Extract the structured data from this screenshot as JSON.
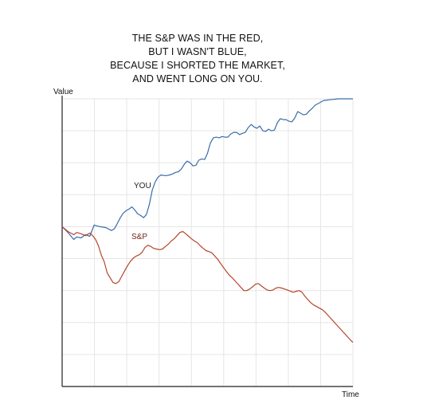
{
  "chart_data": {
    "type": "line",
    "title_lines": [
      "THE S&P WAS IN THE RED,",
      "BUT I WASN'T BLUE,",
      "BECAUSE I SHORTED THE MARKET,",
      "AND WENT LONG ON YOU."
    ],
    "xlabel": "Time",
    "ylabel": "Value",
    "xlim": [
      0,
      100
    ],
    "ylim": [
      0,
      9
    ],
    "grid": true,
    "series": [
      {
        "name": "YOU",
        "color": "#3a6cab",
        "x": [
          0,
          2,
          4,
          5,
          6.5,
          8,
          9.5,
          11,
          12,
          13,
          15,
          17,
          18,
          19,
          20,
          21,
          22,
          23,
          24,
          25,
          26,
          27,
          28,
          29,
          30,
          31,
          32,
          33,
          34,
          35,
          36,
          37,
          38,
          39,
          40,
          41,
          42,
          43,
          44,
          45,
          46,
          47,
          48,
          49,
          50,
          51,
          52,
          53,
          54,
          55,
          56,
          57,
          58,
          59,
          60,
          61,
          62,
          63,
          64,
          65,
          66,
          67,
          68,
          69,
          70,
          71,
          72,
          73,
          74,
          75,
          76,
          77,
          78,
          79,
          80,
          81,
          82,
          83,
          84,
          85,
          86,
          87,
          88,
          89,
          90,
          91,
          92,
          93,
          94,
          95,
          96,
          97,
          98,
          99,
          100
        ],
        "y": [
          5.0,
          4.82,
          4.6,
          4.68,
          4.65,
          4.75,
          4.7,
          5.05,
          5.02,
          5.0,
          4.97,
          4.88,
          4.94,
          5.1,
          5.28,
          5.42,
          5.5,
          5.55,
          5.62,
          5.52,
          5.4,
          5.35,
          5.28,
          5.38,
          5.7,
          6.15,
          6.4,
          6.55,
          6.62,
          6.6,
          6.6,
          6.62,
          6.65,
          6.7,
          6.72,
          6.8,
          6.95,
          7.05,
          7.0,
          6.9,
          6.92,
          7.08,
          7.12,
          7.1,
          7.3,
          7.62,
          7.78,
          7.8,
          7.78,
          7.82,
          7.8,
          7.8,
          7.9,
          7.95,
          7.95,
          7.88,
          7.92,
          7.95,
          8.1,
          8.2,
          8.12,
          8.08,
          8.15,
          8.0,
          7.98,
          8.05,
          8.0,
          8.02,
          8.25,
          8.38,
          8.35,
          8.35,
          8.3,
          8.28,
          8.4,
          8.6,
          8.55,
          8.5,
          8.52,
          8.62,
          8.7,
          8.8,
          8.85,
          8.9,
          8.95,
          8.96,
          8.97,
          8.98,
          8.99,
          9.0,
          9.0,
          9.0,
          9.0,
          9.0,
          9.0
        ]
      },
      {
        "name": "S&P",
        "color": "#b5452a",
        "x": [
          0,
          2,
          4,
          5,
          6.5,
          8,
          9.5,
          10.5,
          11.5,
          12.5,
          13.5,
          14.5,
          15.5,
          16.5,
          17.5,
          18.5,
          19.5,
          20.5,
          21.5,
          22.5,
          23.5,
          24.5,
          25.5,
          26.5,
          27.5,
          28.5,
          29.5,
          30.5,
          31.5,
          32.5,
          33.5,
          34.5,
          35.5,
          36.5,
          37.5,
          38.5,
          39.5,
          40.5,
          41.5,
          42.5,
          43.5,
          44.5,
          45.5,
          46.5,
          47.5,
          48.5,
          49.5,
          50.5,
          51.5,
          52.5,
          53.5,
          54.5,
          55.5,
          56.5,
          57.5,
          58.5,
          59.5,
          60.5,
          61.5,
          62.5,
          63.5,
          64.5,
          65.5,
          66.5,
          67.5,
          68.5,
          69.5,
          70.5,
          71.5,
          72.5,
          73.5,
          74.5,
          75.5,
          76.5,
          77.5,
          78.5,
          79.5,
          80.5,
          81.5,
          82.5,
          83.5,
          84.5,
          85.5,
          86.5,
          87.5,
          88.5,
          89.5,
          90.5,
          91.5,
          92.5,
          93.5,
          94.5,
          95.5,
          96.5,
          97.5,
          98.5,
          99.5,
          100
        ],
        "y": [
          5.0,
          4.85,
          4.75,
          4.82,
          4.78,
          4.72,
          4.8,
          4.72,
          4.6,
          4.4,
          4.1,
          3.9,
          3.55,
          3.4,
          3.25,
          3.22,
          3.28,
          3.45,
          3.62,
          3.78,
          3.92,
          4.02,
          4.08,
          4.12,
          4.2,
          4.35,
          4.42,
          4.38,
          4.32,
          4.3,
          4.28,
          4.3,
          4.38,
          4.45,
          4.55,
          4.62,
          4.72,
          4.82,
          4.85,
          4.78,
          4.7,
          4.62,
          4.55,
          4.5,
          4.4,
          4.32,
          4.25,
          4.22,
          4.18,
          4.08,
          3.98,
          3.85,
          3.72,
          3.6,
          3.48,
          3.4,
          3.3,
          3.2,
          3.1,
          3.0,
          3.0,
          3.05,
          3.12,
          3.2,
          3.22,
          3.15,
          3.08,
          3.02,
          3.0,
          3.02,
          3.08,
          3.1,
          3.08,
          3.05,
          3.02,
          2.98,
          2.95,
          2.98,
          3.0,
          2.95,
          2.82,
          2.72,
          2.62,
          2.55,
          2.5,
          2.45,
          2.4,
          2.32,
          2.22,
          2.12,
          2.02,
          1.92,
          1.82,
          1.72,
          1.62,
          1.52,
          1.42,
          1.38
        ]
      }
    ]
  }
}
